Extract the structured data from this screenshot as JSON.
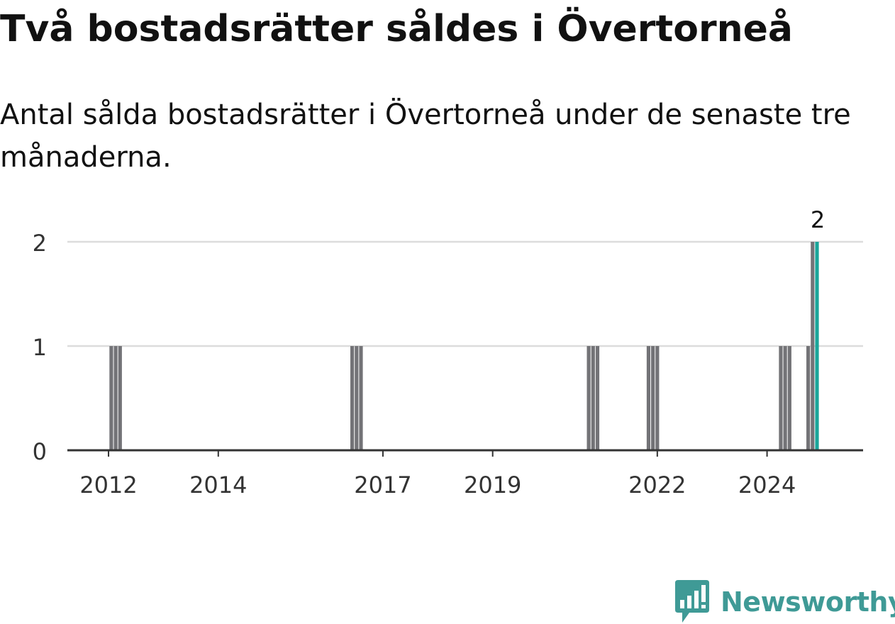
{
  "title": "Två bostadsrätter såldes i Övertorneå",
  "subtitle": "Antal sålda bostadsrätter i Övertorneå under de senaste tre månaderna.",
  "brand": {
    "name": "Newsworthy",
    "color": "#3f9a96",
    "icon": "newsworthy-chart-bubble-icon"
  },
  "chart_data": {
    "type": "bar",
    "title": "Två bostadsrätter såldes i Övertorneå",
    "subtitle": "Antal sålda bostadsrätter i Övertorneå under de senaste tre månaderna.",
    "xlabel": "",
    "ylabel": "",
    "x_unit": "year",
    "xlim": [
      2011.25,
      2025.75
    ],
    "ylim": [
      0,
      2
    ],
    "yticks": [
      0,
      1,
      2
    ],
    "xticks": [
      2012,
      2014,
      2017,
      2019,
      2022,
      2024
    ],
    "grid": true,
    "legend": "none",
    "bar_color": "#737377",
    "highlight_color": "#1aa59a",
    "bars": [
      {
        "x": 2012.05,
        "value": 1
      },
      {
        "x": 2012.13,
        "value": 1
      },
      {
        "x": 2012.21,
        "value": 1
      },
      {
        "x": 2016.44,
        "value": 1
      },
      {
        "x": 2016.52,
        "value": 1
      },
      {
        "x": 2016.6,
        "value": 1
      },
      {
        "x": 2020.75,
        "value": 1
      },
      {
        "x": 2020.83,
        "value": 1
      },
      {
        "x": 2020.91,
        "value": 1
      },
      {
        "x": 2021.84,
        "value": 1
      },
      {
        "x": 2021.92,
        "value": 1
      },
      {
        "x": 2022.0,
        "value": 1
      },
      {
        "x": 2024.25,
        "value": 1
      },
      {
        "x": 2024.33,
        "value": 1
      },
      {
        "x": 2024.41,
        "value": 1
      },
      {
        "x": 2024.75,
        "value": 1
      },
      {
        "x": 2024.83,
        "value": 2
      },
      {
        "x": 2024.91,
        "value": 2,
        "highlight": true,
        "label": "2"
      }
    ]
  }
}
